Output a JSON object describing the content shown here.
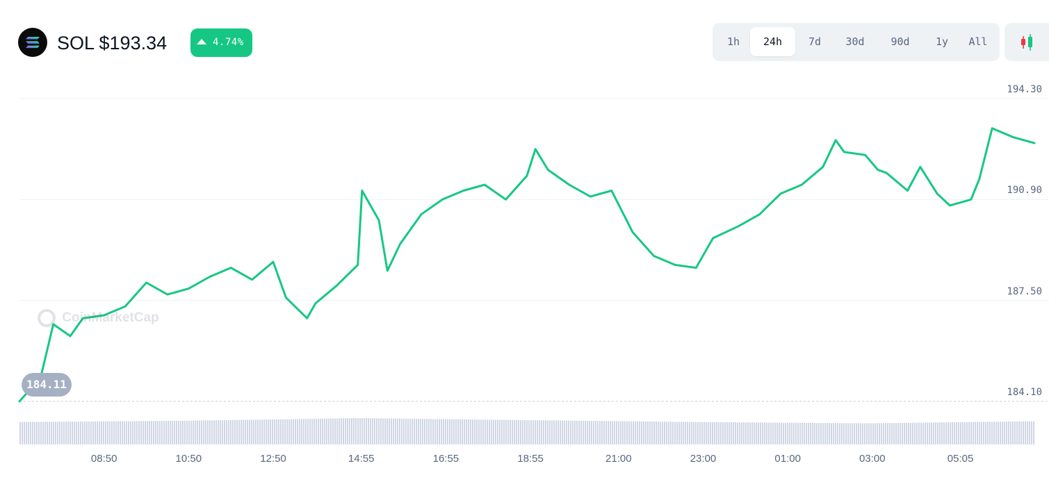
{
  "header": {
    "title": "SOL $193.34",
    "change": "4.74%",
    "change_color": "#16c784",
    "coin_icon": "solana-logo-icon",
    "range_options": [
      {
        "label": "1h",
        "active": false
      },
      {
        "label": "24h",
        "active": true
      },
      {
        "label": "7d",
        "active": false
      },
      {
        "label": "30d",
        "active": false
      },
      {
        "label": "90d",
        "active": false
      },
      {
        "label": "1y",
        "active": false
      },
      {
        "label": "All",
        "active": false
      }
    ],
    "chart_type_icon": "candlestick-icon"
  },
  "watermark": "CoinMarketCap",
  "chart_data": {
    "type": "line",
    "title": "",
    "xlabel": "",
    "ylabel": "",
    "line_color": "#16c784",
    "start_value_label": "184.11",
    "y_ticks": [
      "194.30",
      "190.90",
      "187.50",
      "184.10"
    ],
    "y_tick_values": [
      194.3,
      190.9,
      187.5,
      184.1
    ],
    "ylim": [
      184.1,
      194.3
    ],
    "x_tick_labels": [
      "08:50",
      "10:50",
      "12:50",
      "14:55",
      "16:55",
      "18:55",
      "21:00",
      "23:00",
      "01:00",
      "03:00",
      "05:05"
    ],
    "x_tick_hours": [
      2,
      4,
      6,
      8.083,
      10.083,
      12.083,
      14.167,
      16.167,
      18.167,
      20.167,
      22.25
    ],
    "x_range_hours": [
      0,
      24
    ],
    "grid": true,
    "series": [
      {
        "x": [
          0,
          0.5,
          0.8,
          1.2,
          1.5,
          2,
          2.5,
          3,
          3.5,
          4,
          4.5,
          5,
          5.5,
          6,
          6.3,
          6.8,
          7,
          7.5,
          8,
          8.1,
          8.5,
          8.7,
          9,
          9.5,
          10,
          10.5,
          11,
          11.5,
          12,
          12.2,
          12.5,
          13,
          13.5,
          14,
          14.5,
          15,
          15.5,
          16,
          16.4,
          17,
          17.5,
          18,
          18.5,
          19,
          19.3,
          19.5,
          20,
          20.3,
          20.5,
          21,
          21.3,
          21.7,
          22,
          22.5,
          22.7,
          23,
          23.5,
          24
        ],
        "values": [
          184.1,
          184.9,
          186.7,
          186.3,
          186.9,
          187.0,
          187.3,
          188.1,
          187.7,
          187.9,
          188.3,
          188.6,
          188.2,
          188.8,
          187.6,
          186.9,
          187.4,
          188.0,
          188.7,
          191.2,
          190.2,
          188.5,
          189.4,
          190.4,
          190.9,
          191.2,
          191.4,
          190.9,
          191.7,
          192.6,
          191.9,
          191.4,
          191.0,
          191.2,
          189.8,
          189.0,
          188.7,
          188.6,
          189.6,
          190.0,
          190.4,
          191.1,
          191.4,
          192.0,
          192.9,
          192.5,
          192.4,
          191.9,
          191.8,
          191.2,
          192.0,
          191.1,
          190.7,
          190.9,
          191.6,
          193.3,
          193.0,
          192.8
        ]
      }
    ],
    "volume": {
      "type": "bar",
      "color": "#cfd6e4",
      "x": [
        0,
        4,
        8,
        12,
        16,
        20,
        24
      ],
      "values": [
        0.85,
        0.9,
        1.0,
        0.92,
        0.85,
        0.8,
        0.88
      ]
    }
  }
}
